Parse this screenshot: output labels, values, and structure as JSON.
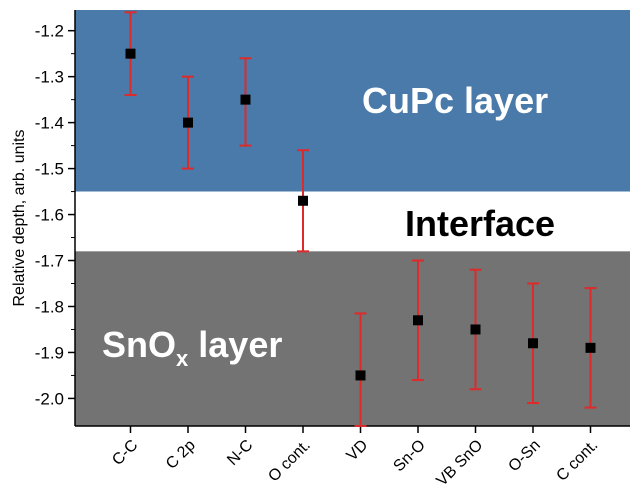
{
  "chart_data": {
    "type": "scatter",
    "ylabel": "Relative depth, arb. units",
    "xlabel": "",
    "title": "",
    "categories": [
      "C-C",
      "C 2p",
      "N-C",
      "O cont.",
      "VD",
      "Sn-O",
      "VB SnO",
      "O-Sn",
      "C cont."
    ],
    "values": [
      -1.25,
      -1.4,
      -1.35,
      -1.57,
      -1.95,
      -1.83,
      -1.85,
      -1.88,
      -1.89
    ],
    "error_low": [
      -1.34,
      -1.5,
      -1.45,
      -1.68,
      -2.06,
      -1.96,
      -1.98,
      -2.01,
      -2.02
    ],
    "error_high": [
      -1.16,
      -1.3,
      -1.26,
      -1.46,
      -1.815,
      -1.7,
      -1.72,
      -1.75,
      -1.76
    ],
    "ylim": [
      -2.06,
      -1.155
    ],
    "yticks": [
      -1.2,
      -1.3,
      -1.4,
      -1.5,
      -1.6,
      -1.7,
      -1.8,
      -1.9,
      -2.0
    ],
    "ytick_labels": [
      "-1.2",
      "-1.3",
      "-1.4",
      "-1.5",
      "-1.6",
      "-1.7",
      "-1.8",
      "-1.9",
      "-2.0"
    ],
    "regions": [
      {
        "label": "CuPc layer",
        "y_from": -1.155,
        "y_to": -1.55,
        "color": "#4a7aaa",
        "text_color": "#ffffff"
      },
      {
        "label": "Interface",
        "y_from": -1.55,
        "y_to": -1.68,
        "color": "#ffffff",
        "text_color": "#000000"
      },
      {
        "label": "SnO",
        "label_sub": "x",
        "label_suffix": " layer",
        "y_from": -1.68,
        "y_to": -2.06,
        "color": "#737373",
        "text_color": "#ffffff"
      }
    ],
    "marker_color": "#000000",
    "error_color": "#dd2a2a"
  }
}
